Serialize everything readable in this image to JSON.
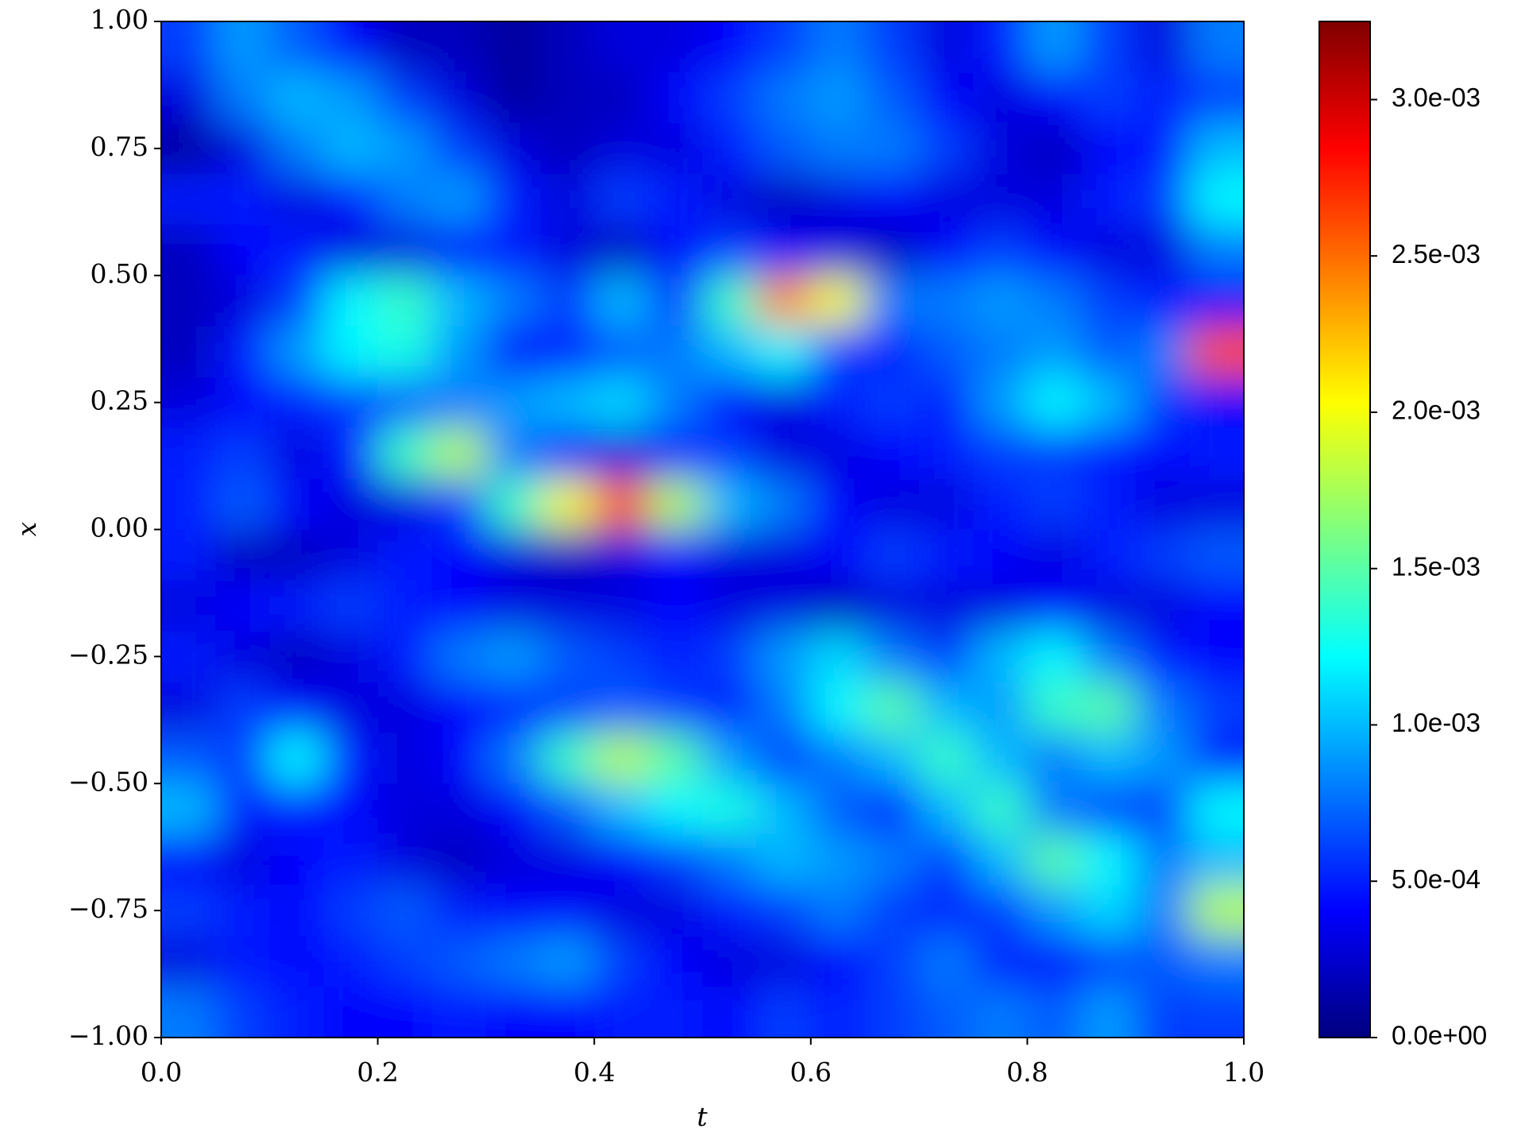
{
  "chart_data": {
    "type": "heatmap",
    "colormap": "jet",
    "xlabel": "t",
    "ylabel": "x",
    "xlim": [
      0,
      1
    ],
    "ylim": [
      -1,
      1
    ],
    "xticks": [
      {
        "value": 0,
        "label": "0.0"
      },
      0.2,
      0.4,
      0.6,
      0.8,
      {
        "value": 1,
        "label": "1.0"
      }
    ],
    "yticks": [
      {
        "value": -1,
        "label": "−1.00"
      },
      {
        "value": -0.75,
        "label": "−0.75"
      },
      {
        "value": -0.5,
        "label": "−0.50"
      },
      {
        "value": -0.25,
        "label": "−0.25"
      },
      {
        "value": 0,
        "label": "0.00"
      },
      {
        "value": 0.25,
        "label": "0.25"
      },
      {
        "value": 0.5,
        "label": "0.50"
      },
      {
        "value": 0.75,
        "label": "0.75"
      },
      {
        "value": 1,
        "label": "1.00"
      }
    ],
    "clim": [
      0,
      0.00325
    ],
    "cticks": [
      {
        "value": 0,
        "label": "0.0e+00"
      },
      {
        "value": 0.0005,
        "label": "5.0e-04"
      },
      {
        "value": 0.001,
        "label": "1.0e-03"
      },
      {
        "value": 0.0015,
        "label": "1.5e-03"
      },
      {
        "value": 0.002,
        "label": "2.0e-03"
      },
      {
        "value": 0.0025,
        "label": "2.5e-03"
      },
      {
        "value": 0.003,
        "label": "3.0e-03"
      }
    ],
    "x": [
      0.025,
      0.075,
      0.125,
      0.175,
      0.225,
      0.275,
      0.325,
      0.375,
      0.425,
      0.475,
      0.525,
      0.575,
      0.625,
      0.675,
      0.725,
      0.775,
      0.825,
      0.875,
      0.925,
      0.975
    ],
    "y": [
      0.95,
      0.85,
      0.75,
      0.65,
      0.55,
      0.45,
      0.35,
      0.25,
      0.15,
      0.05,
      -0.05,
      -0.15,
      -0.25,
      -0.35,
      -0.45,
      -0.55,
      -0.65,
      -0.75,
      -0.85,
      -0.95
    ],
    "z": [
      [
        0.0006,
        0.0009,
        0.0007,
        0.0004,
        0.0002,
        0.0002,
        0.0001,
        0.0002,
        0.0003,
        0.0003,
        0.0004,
        0.0006,
        0.0008,
        0.0006,
        0.0003,
        0.0005,
        0.0009,
        0.0006,
        0.0003,
        0.0008
      ],
      [
        0.0003,
        0.0008,
        0.001,
        0.0009,
        0.0006,
        0.0003,
        0.0001,
        0.0002,
        0.0002,
        0.0004,
        0.0006,
        0.0008,
        0.0009,
        0.0007,
        0.0004,
        0.0003,
        0.0004,
        0.0006,
        0.0005,
        0.0006
      ],
      [
        0.0001,
        0.0003,
        0.0008,
        0.001,
        0.0009,
        0.0006,
        0.0003,
        0.0002,
        0.0003,
        0.0003,
        0.0005,
        0.0007,
        0.0008,
        0.0008,
        0.0006,
        0.0003,
        0.0002,
        0.0004,
        0.0005,
        0.001
      ],
      [
        0.0005,
        0.0005,
        0.0003,
        0.0005,
        0.0008,
        0.0009,
        0.0005,
        0.0003,
        0.0006,
        0.0005,
        0.0003,
        0.0002,
        0.0003,
        0.0004,
        0.0003,
        0.0003,
        0.0003,
        0.0005,
        0.0006,
        0.0012
      ],
      [
        0.0002,
        0.0004,
        0.0005,
        0.0003,
        0.0003,
        0.0004,
        0.0005,
        0.0003,
        0.0002,
        0.0004,
        0.0006,
        0.0004,
        0.0003,
        0.0002,
        0.0004,
        0.0006,
        0.0004,
        0.0003,
        0.0003,
        0.0008
      ],
      [
        0.0002,
        0.0003,
        0.0006,
        0.0012,
        0.0014,
        0.001,
        0.0008,
        0.0006,
        0.001,
        0.0006,
        0.0014,
        0.0024,
        0.002,
        0.0008,
        0.0008,
        0.0009,
        0.0008,
        0.0006,
        0.0005,
        0.0004
      ],
      [
        0.0002,
        0.0005,
        0.0009,
        0.0012,
        0.0013,
        0.0009,
        0.0004,
        0.0005,
        0.0007,
        0.0008,
        0.001,
        0.0012,
        0.0006,
        0.0005,
        0.0007,
        0.0008,
        0.0009,
        0.0007,
        0.0008,
        0.0026
      ],
      [
        0.0003,
        0.0004,
        0.0005,
        0.0006,
        0.0007,
        0.0008,
        0.0009,
        0.001,
        0.0011,
        0.0008,
        0.0004,
        0.0003,
        0.0005,
        0.0006,
        0.0005,
        0.0009,
        0.0012,
        0.001,
        0.0006,
        0.0004
      ],
      [
        0.0005,
        0.0006,
        0.0003,
        0.0005,
        0.0014,
        0.0018,
        0.0008,
        0.0004,
        0.0003,
        0.0005,
        0.0006,
        0.0003,
        0.0003,
        0.0004,
        0.0005,
        0.0006,
        0.0006,
        0.0005,
        0.0004,
        0.0005
      ],
      [
        0.0005,
        0.0007,
        0.0004,
        0.0003,
        0.0003,
        0.0006,
        0.0014,
        0.002,
        0.0026,
        0.0018,
        0.001,
        0.0008,
        0.0004,
        0.0003,
        0.0003,
        0.0005,
        0.0006,
        0.0005,
        0.0003,
        0.0003
      ],
      [
        0.0005,
        0.0002,
        0.0002,
        0.0003,
        0.0005,
        0.0004,
        0.0003,
        0.0002,
        0.0003,
        0.0004,
        0.0003,
        0.0003,
        0.0004,
        0.0006,
        0.0005,
        0.0004,
        0.0003,
        0.0005,
        0.0006,
        0.0007
      ],
      [
        0.0003,
        0.0004,
        0.0005,
        0.0006,
        0.0005,
        0.0004,
        0.0003,
        0.0003,
        0.0003,
        0.0004,
        0.0003,
        0.0003,
        0.0002,
        0.0003,
        0.0003,
        0.0003,
        0.0004,
        0.0003,
        0.0003,
        0.0004
      ],
      [
        0.0005,
        0.0003,
        0.0002,
        0.0003,
        0.0005,
        0.0008,
        0.0009,
        0.0007,
        0.0006,
        0.0005,
        0.0006,
        0.0009,
        0.0011,
        0.0008,
        0.0006,
        0.001,
        0.0012,
        0.0008,
        0.0005,
        0.0004
      ],
      [
        0.0003,
        0.0006,
        0.0004,
        0.0003,
        0.0003,
        0.0004,
        0.0005,
        0.0006,
        0.0007,
        0.0006,
        0.0005,
        0.0008,
        0.0012,
        0.0015,
        0.001,
        0.0009,
        0.0014,
        0.0015,
        0.0008,
        0.0006
      ],
      [
        0.0007,
        0.0006,
        0.0012,
        0.0005,
        0.0003,
        0.0004,
        0.0008,
        0.0014,
        0.0018,
        0.0015,
        0.0009,
        0.0006,
        0.0008,
        0.001,
        0.0014,
        0.001,
        0.0008,
        0.001,
        0.0009,
        0.0005
      ],
      [
        0.001,
        0.0005,
        0.0005,
        0.0004,
        0.0003,
        0.0003,
        0.0004,
        0.0007,
        0.001,
        0.0012,
        0.0013,
        0.001,
        0.0007,
        0.0005,
        0.001,
        0.0014,
        0.0008,
        0.0006,
        0.0006,
        0.0012
      ],
      [
        0.0004,
        0.0003,
        0.0004,
        0.0005,
        0.0003,
        0.0002,
        0.0003,
        0.0003,
        0.0004,
        0.0006,
        0.0008,
        0.001,
        0.0009,
        0.0008,
        0.0006,
        0.001,
        0.0015,
        0.0012,
        0.0008,
        0.001
      ],
      [
        0.0006,
        0.0005,
        0.0004,
        0.0006,
        0.0007,
        0.0005,
        0.0004,
        0.0004,
        0.0003,
        0.0003,
        0.0005,
        0.0006,
        0.0008,
        0.0006,
        0.0005,
        0.0006,
        0.0009,
        0.0011,
        0.0008,
        0.0018
      ],
      [
        0.0003,
        0.0005,
        0.0004,
        0.0005,
        0.0006,
        0.0007,
        0.0008,
        0.0009,
        0.0006,
        0.0004,
        0.0003,
        0.0003,
        0.0004,
        0.0006,
        0.0008,
        0.0005,
        0.0004,
        0.0006,
        0.0007,
        0.0008
      ],
      [
        0.0008,
        0.0006,
        0.0005,
        0.0004,
        0.0004,
        0.0005,
        0.0004,
        0.0004,
        0.0005,
        0.0005,
        0.0004,
        0.0006,
        0.0005,
        0.0006,
        0.0007,
        0.0008,
        0.0007,
        0.0009,
        0.0006,
        0.0006
      ]
    ]
  }
}
